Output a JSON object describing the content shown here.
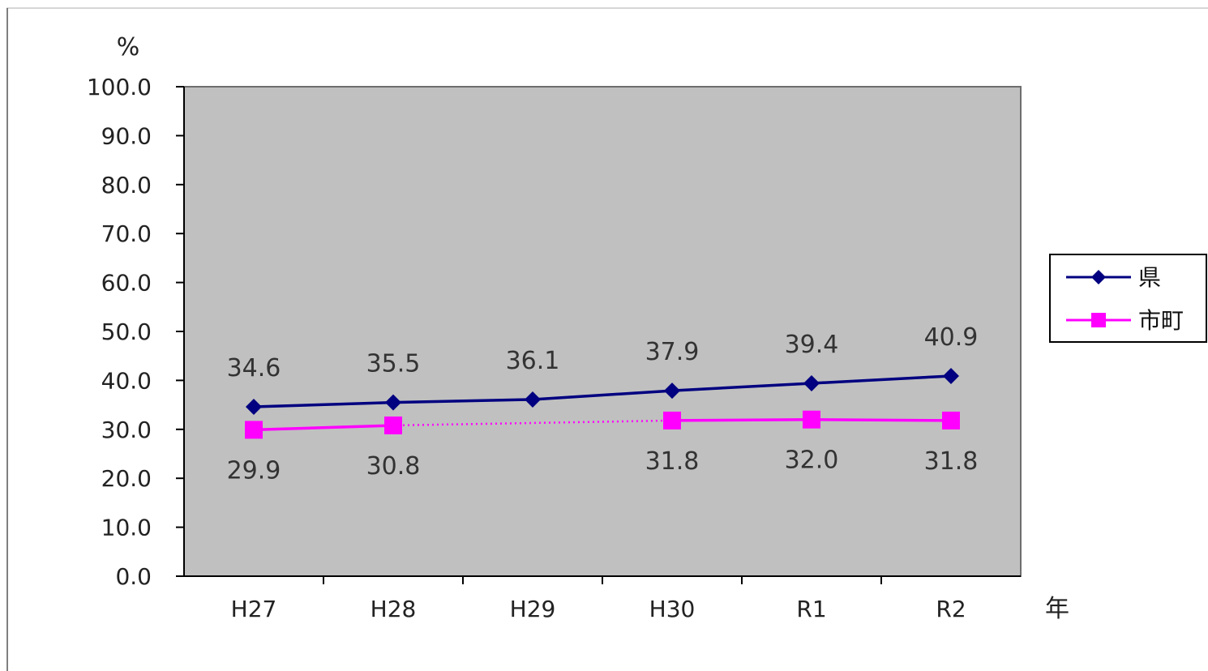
{
  "chart_data": {
    "type": "line",
    "categories": [
      "H27",
      "H28",
      "H29",
      "H30",
      "R1",
      "R2"
    ],
    "series": [
      {
        "name": "県",
        "values": [
          34.6,
          35.5,
          36.1,
          37.9,
          39.4,
          40.9
        ],
        "value_labels": [
          "34.6",
          "35.5",
          "36.1",
          "37.9",
          "39.4",
          "40.9"
        ],
        "color": "#000080",
        "marker": "diamond"
      },
      {
        "name": "市町",
        "values": [
          29.9,
          30.8,
          null,
          31.8,
          32.0,
          31.8
        ],
        "value_labels": [
          "29.9",
          "30.8",
          "",
          "31.8",
          "32.0",
          "31.8"
        ],
        "color": "#ff00ff",
        "marker": "square",
        "gap_style": "dotted"
      }
    ],
    "ylabel": "%",
    "xlabel": "年",
    "ylim": [
      0,
      100
    ],
    "yticks": [
      0,
      10,
      20,
      30,
      40,
      50,
      60,
      70,
      80,
      90,
      100
    ],
    "ytick_labels": [
      "0.0",
      "10.0",
      "20.0",
      "30.0",
      "40.0",
      "50.0",
      "60.0",
      "70.0",
      "80.0",
      "90.0",
      "100.0"
    ],
    "grid": false,
    "legend_position": "right",
    "plot_background": "#c0c0c0"
  }
}
